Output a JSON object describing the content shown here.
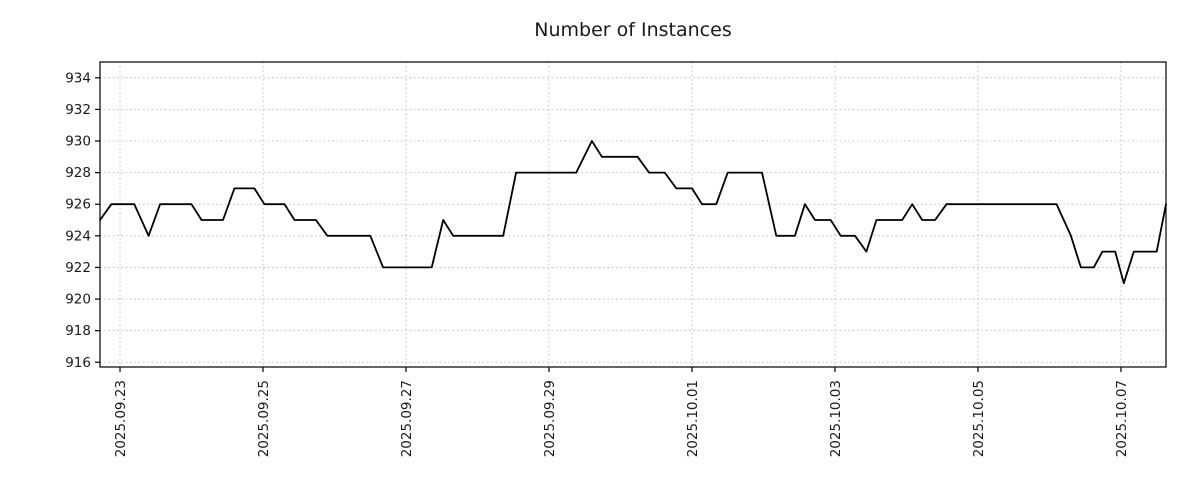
{
  "title": "Number of Instances",
  "chart_data": {
    "type": "line",
    "title": "Number of Instances",
    "xlabel": "",
    "ylabel": "",
    "x_unit": "days since 2025.09.23",
    "xlim": [
      -0.28,
      14.63
    ],
    "ylim": [
      915.7,
      935.0
    ],
    "y_ticks": [
      916,
      918,
      920,
      922,
      924,
      926,
      928,
      930,
      932,
      934
    ],
    "x_ticks": [
      {
        "day": 0,
        "label": "2025.09.23"
      },
      {
        "day": 2,
        "label": "2025.09.25"
      },
      {
        "day": 4,
        "label": "2025.09.27"
      },
      {
        "day": 6,
        "label": "2025.09.29"
      },
      {
        "day": 8,
        "label": "2025.10.01"
      },
      {
        "day": 10,
        "label": "2025.10.03"
      },
      {
        "day": 12,
        "label": "2025.10.05"
      },
      {
        "day": 14,
        "label": "2025.10.07"
      }
    ],
    "grid": true,
    "legend": null,
    "line_color": "#000000",
    "grid_color": "#b0b0b0",
    "axis_color": "#000000",
    "background": "#ffffff",
    "points": [
      [
        -0.28,
        925
      ],
      [
        -0.12,
        926
      ],
      [
        0.2,
        926
      ],
      [
        0.4,
        924
      ],
      [
        0.56,
        926
      ],
      [
        1.0,
        926
      ],
      [
        1.14,
        925
      ],
      [
        1.44,
        925
      ],
      [
        1.6,
        927
      ],
      [
        1.88,
        927
      ],
      [
        2.02,
        926
      ],
      [
        2.3,
        926
      ],
      [
        2.44,
        925
      ],
      [
        2.74,
        925
      ],
      [
        2.9,
        924
      ],
      [
        3.5,
        924
      ],
      [
        3.68,
        922
      ],
      [
        4.36,
        922
      ],
      [
        4.52,
        925
      ],
      [
        4.66,
        924
      ],
      [
        5.36,
        924
      ],
      [
        5.54,
        928
      ],
      [
        6.38,
        928
      ],
      [
        6.6,
        930
      ],
      [
        6.74,
        929
      ],
      [
        7.24,
        929
      ],
      [
        7.4,
        928
      ],
      [
        7.62,
        928
      ],
      [
        7.78,
        927
      ],
      [
        8.0,
        927
      ],
      [
        8.14,
        926
      ],
      [
        8.34,
        926
      ],
      [
        8.5,
        928
      ],
      [
        8.98,
        928
      ],
      [
        9.18,
        924
      ],
      [
        9.44,
        924
      ],
      [
        9.58,
        926
      ],
      [
        9.72,
        925
      ],
      [
        9.94,
        925
      ],
      [
        10.08,
        924
      ],
      [
        10.28,
        924
      ],
      [
        10.44,
        923
      ],
      [
        10.58,
        925
      ],
      [
        10.94,
        925
      ],
      [
        11.08,
        926
      ],
      [
        11.22,
        925
      ],
      [
        11.4,
        925
      ],
      [
        11.56,
        926
      ],
      [
        13.1,
        926
      ],
      [
        13.3,
        924
      ],
      [
        13.44,
        922
      ],
      [
        13.62,
        922
      ],
      [
        13.74,
        923
      ],
      [
        13.92,
        923
      ],
      [
        14.04,
        921
      ],
      [
        14.18,
        923
      ],
      [
        14.5,
        923
      ],
      [
        14.63,
        926
      ]
    ]
  }
}
